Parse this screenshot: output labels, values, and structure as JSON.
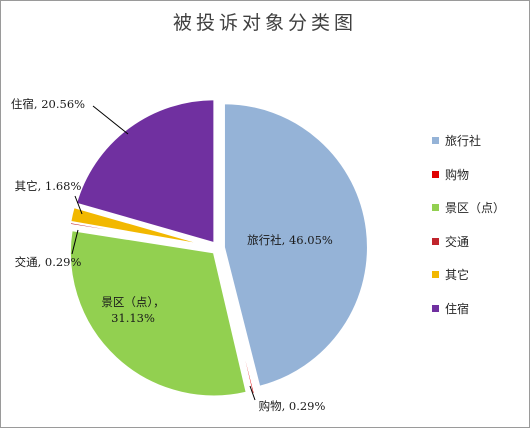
{
  "chart_data": {
    "type": "pie",
    "title": "被投诉对象分类图",
    "categories": [
      "旅行社",
      "购物",
      "景区（点）",
      "交通",
      "其它",
      "住宿"
    ],
    "values": [
      46.05,
      0.29,
      31.13,
      0.29,
      1.68,
      20.56
    ],
    "colors": [
      "#95b3d7",
      "#e00000",
      "#92d050",
      "#c0242c",
      "#f2b800",
      "#7030a0"
    ],
    "data_labels": [
      "旅行社, 46.05%",
      "购物, 0.29%",
      "景区（点）, 31.13%",
      "交通, 0.29%",
      "其它, 1.68%",
      "住宿, 20.56%"
    ],
    "exploded": true,
    "legend_position": "right"
  }
}
